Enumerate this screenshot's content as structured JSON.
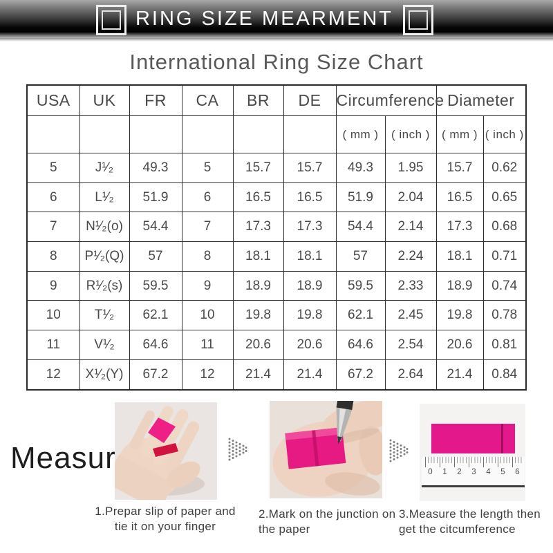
{
  "banner": {
    "title": "RING SIZE MEARMENT",
    "left_icon": "double-square-icon",
    "right_icon": "double-square-icon"
  },
  "page_title": "International Ring Size Chart",
  "table": {
    "headers": [
      "USA",
      "UK",
      "FR",
      "CA",
      "BR",
      "DE",
      "Circumference",
      "Diameter"
    ],
    "subheaders": [
      "( mm )",
      "( inch )",
      "( mm )",
      "( inch )"
    ],
    "rows": [
      [
        "5",
        "J¹⁄₂",
        "49.3",
        "5",
        "15.7",
        "15.7",
        "49.3",
        "1.95",
        "15.7",
        "0.62"
      ],
      [
        "6",
        "L¹⁄₂",
        "51.9",
        "6",
        "16.5",
        "16.5",
        "51.9",
        "2.04",
        "16.5",
        "0.65"
      ],
      [
        "7",
        "N¹⁄₂(o)",
        "54.4",
        "7",
        "17.3",
        "17.3",
        "54.4",
        "2.14",
        "17.3",
        "0.68"
      ],
      [
        "8",
        "P¹⁄₂(Q)",
        "57",
        "8",
        "18.1",
        "18.1",
        "57",
        "2.24",
        "18.1",
        "0.71"
      ],
      [
        "9",
        "R¹⁄₂(s)",
        "59.5",
        "9",
        "18.9",
        "18.9",
        "59.5",
        "2.33",
        "18.9",
        "0.74"
      ],
      [
        "10",
        "T¹⁄₂",
        "62.1",
        "10",
        "19.8",
        "19.8",
        "62.1",
        "2.45",
        "19.8",
        "0.78"
      ],
      [
        "11",
        "V¹⁄₂",
        "64.6",
        "11",
        "20.6",
        "20.6",
        "64.6",
        "2.54",
        "20.6",
        "0.81"
      ],
      [
        "12",
        "X¹⁄₂(Y)",
        "67.2",
        "12",
        "21.4",
        "21.4",
        "67.2",
        "2.64",
        "21.4",
        "0.84"
      ]
    ]
  },
  "chart_data": {
    "type": "table",
    "title": "International Ring Size Chart",
    "columns": [
      "USA",
      "UK",
      "FR",
      "CA",
      "BR",
      "DE",
      "Circumference ( mm )",
      "Circumference ( inch )",
      "Diameter ( mm )",
      "Diameter ( inch )"
    ],
    "rows": [
      [
        "5",
        "J¹⁄₂",
        "49.3",
        "5",
        "15.7",
        "15.7",
        "49.3",
        "1.95",
        "15.7",
        "0.62"
      ],
      [
        "6",
        "L¹⁄₂",
        "51.9",
        "6",
        "16.5",
        "16.5",
        "51.9",
        "2.04",
        "16.5",
        "0.65"
      ],
      [
        "7",
        "N¹⁄₂(o)",
        "54.4",
        "7",
        "17.3",
        "17.3",
        "54.4",
        "2.14",
        "17.3",
        "0.68"
      ],
      [
        "8",
        "P¹⁄₂(Q)",
        "57",
        "8",
        "18.1",
        "18.1",
        "57",
        "2.24",
        "18.1",
        "0.71"
      ],
      [
        "9",
        "R¹⁄₂(s)",
        "59.5",
        "9",
        "18.9",
        "18.9",
        "59.5",
        "2.33",
        "18.9",
        "0.74"
      ],
      [
        "10",
        "T¹⁄₂",
        "62.1",
        "10",
        "19.8",
        "19.8",
        "62.1",
        "2.45",
        "19.8",
        "0.78"
      ],
      [
        "11",
        "V¹⁄₂",
        "64.6",
        "11",
        "20.6",
        "20.6",
        "64.6",
        "2.54",
        "20.6",
        "0.81"
      ],
      [
        "12",
        "X¹⁄₂(Y)",
        "67.2",
        "12",
        "21.4",
        "21.4",
        "67.2",
        "2.64",
        "21.4",
        "0.84"
      ]
    ]
  },
  "measure": {
    "label": "Measure",
    "steps": [
      {
        "caption": "1.Prepar slip of paper and tie it on your finger"
      },
      {
        "caption": "2.Mark on the junction on the paper"
      },
      {
        "caption": "3.Measure the length then get the citcumference"
      }
    ],
    "ruler_numbers": [
      "0",
      "1",
      "2",
      "3",
      "4",
      "5",
      "6"
    ]
  },
  "colors": {
    "accent_pink": "#e2188b",
    "accent_pink_dark": "#c0106a",
    "banner_dark": "#070707",
    "table_border": "#2e2e2e",
    "text_gray": "#4a4a4a"
  }
}
